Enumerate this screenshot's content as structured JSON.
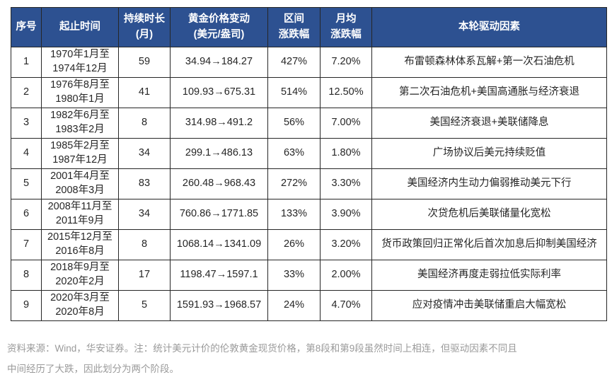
{
  "table": {
    "col_keys": [
      "index",
      "period",
      "duration-months",
      "price-change",
      "range-pct",
      "monthly-pct",
      "driver"
    ],
    "headers": [
      "序号",
      "起止时间",
      "持续时长\n(月)",
      "黄金价格变动\n(美元/盎司)",
      "区间\n涨跌幅",
      "月均\n涨跌幅",
      "本轮驱动因素"
    ],
    "rows": [
      [
        "1",
        "1970年1月至\n1974年12月",
        "59",
        "34.94→184.27",
        "427%",
        "7.20%",
        "布雷顿森林体系瓦解+第一次石油危机"
      ],
      [
        "2",
        "1976年8月至\n1980年1月",
        "41",
        "109.93→675.31",
        "514%",
        "12.50%",
        "第二次石油危机+美国高通胀与经济衰退"
      ],
      [
        "3",
        "1982年6月至\n1983年2月",
        "8",
        "314.98→491.2",
        "56%",
        "7.00%",
        "美国经济衰退+美联储降息"
      ],
      [
        "4",
        "1985年2月至\n1987年12月",
        "34",
        "299.1→486.13",
        "63%",
        "1.80%",
        "广场协议后美元持续贬值"
      ],
      [
        "5",
        "2001年4月至\n2008年3月",
        "83",
        "260.48→968.43",
        "272%",
        "3.30%",
        "美国经济内生动力偏弱推动美元下行"
      ],
      [
        "6",
        "2008年11月至\n2011年9月",
        "34",
        "760.86→1771.85",
        "133%",
        "3.90%",
        "次贷危机后美联储量化宽松"
      ],
      [
        "7",
        "2015年12月至\n2016年8月",
        "8",
        "1068.14→1341.09",
        "26%",
        "3.20%",
        "货币政策回归正常化后首次加息后抑制美国经济"
      ],
      [
        "8",
        "2018年9月至\n2020年2月",
        "17",
        "1198.47→1597.1",
        "33%",
        "2.00%",
        "美国经济再度走弱拉低实际利率"
      ],
      [
        "9",
        "2020年3月至\n2020年8月",
        "5",
        "1591.93→1968.57",
        "24%",
        "4.70%",
        "应对疫情冲击美联储重启大幅宽松"
      ]
    ]
  },
  "footer": {
    "lines": [
      "资料来源：Wind，华安证券。注：统计美元计价的伦敦黄金现货价格，第8段和第9段虽然时间上相连，但驱动因素不同且",
      "中间经历了大跌，因此划分为两个阶段。"
    ]
  },
  "colors": {
    "header_bg": "#2d5191",
    "header_text": "#ffffff",
    "border": "#262626",
    "body_text": "#262626",
    "footer_text": "#9a9a9a"
  }
}
